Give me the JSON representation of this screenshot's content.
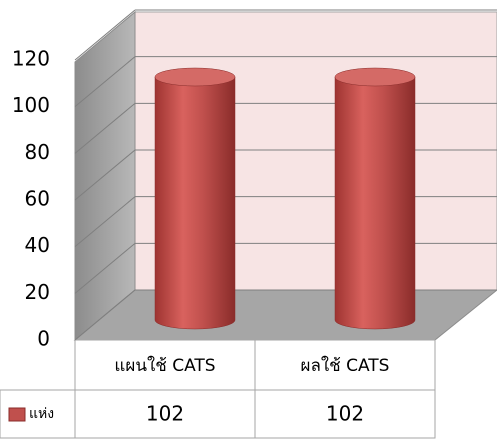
{
  "chart_data": {
    "type": "bar3d",
    "categories": [
      "แผนใช้ CATS",
      "ผลใช้ CATS"
    ],
    "series": [
      {
        "name": "แห่ง",
        "color": "#c0504d",
        "values": [
          102,
          102
        ]
      }
    ],
    "ylim": [
      0,
      120
    ],
    "yticks": [
      0,
      20,
      40,
      60,
      80,
      100,
      120
    ],
    "grid": true,
    "data_table": true
  }
}
